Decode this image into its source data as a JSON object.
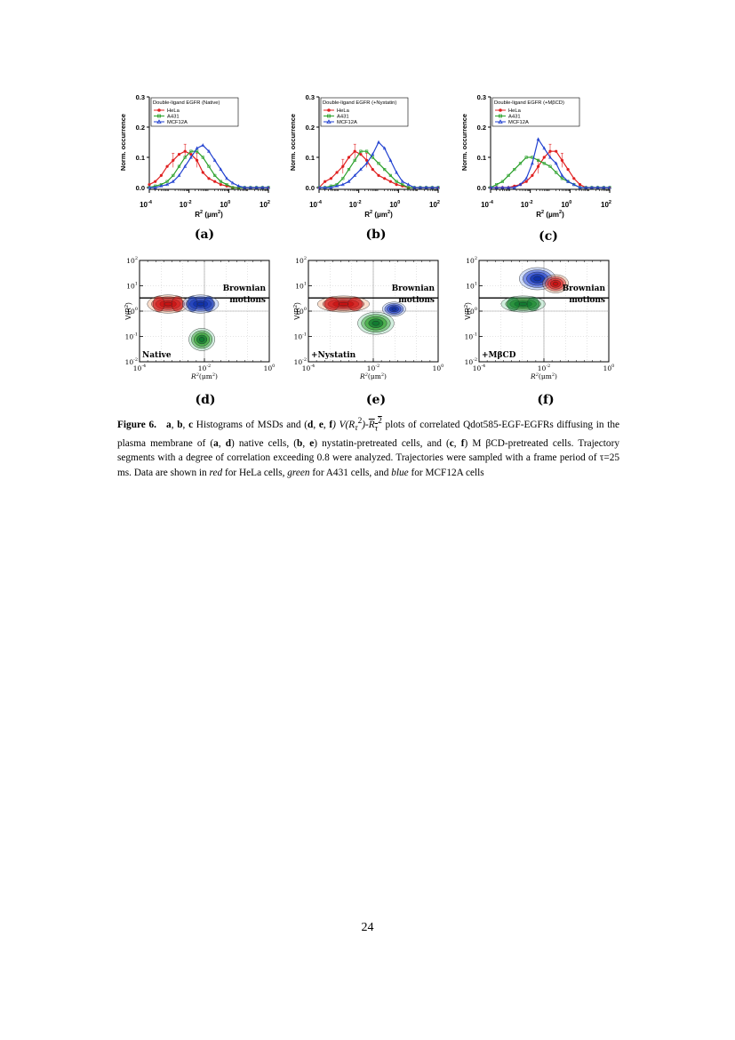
{
  "panels_top": [
    {
      "label": "(a)",
      "legend_title": "Double-ligand EGFR (Native)",
      "ylabel": "Norm. occurrence",
      "xlabel_main": "R",
      "xlabel_unit": " (μm )",
      "yticks": [
        "0.0",
        "0.1",
        "0.2",
        "0.3"
      ],
      "xticks": [
        {
          "base": "10",
          "exp": "-4"
        },
        {
          "base": "10",
          "exp": "-2"
        },
        {
          "base": "10",
          "exp": "0"
        },
        {
          "base": "10",
          "exp": "2"
        }
      ],
      "series_names": [
        "HeLa",
        "A431",
        "MCF12A"
      ]
    },
    {
      "label": "(b)",
      "legend_title": "Double-ligand EGFR (+Nystatin)",
      "ylabel": "Norm. occurrence",
      "xlabel_main": "R",
      "xlabel_unit": " (μm )",
      "yticks": [
        "0.0",
        "0.1",
        "0.2",
        "0.3"
      ],
      "xticks": [
        {
          "base": "10",
          "exp": "-4"
        },
        {
          "base": "10",
          "exp": "-2"
        },
        {
          "base": "10",
          "exp": "0"
        },
        {
          "base": "10",
          "exp": "2"
        }
      ],
      "series_names": [
        "HeLa",
        "A431",
        "MCF12A"
      ]
    },
    {
      "label": "(c)",
      "legend_title": "Double-ligand EGFR (+MβCD)",
      "ylabel": "Norm. occurrence",
      "xlabel_main": "R",
      "xlabel_unit": " (μm )",
      "yticks": [
        "0.0",
        "0.1",
        "0.2",
        "0.3"
      ],
      "xticks": [
        {
          "base": "10",
          "exp": "-4"
        },
        {
          "base": "10",
          "exp": "-2"
        },
        {
          "base": "10",
          "exp": "0"
        },
        {
          "base": "10",
          "exp": "2"
        }
      ],
      "series_names": [
        "HeLa",
        "A431",
        "MCF12A"
      ]
    }
  ],
  "panels_bottom": [
    {
      "label": "(d)",
      "condition": "Native",
      "brownian_1": "Brownian",
      "brownian_2": "motions",
      "ylabel": "V(R )",
      "xlabel": "R (μ m )"
    },
    {
      "label": "(e)",
      "condition": "+Nystatin",
      "brownian_1": "Brownian",
      "brownian_2": "motions",
      "ylabel": "V(R )",
      "xlabel": "R (μ m )"
    },
    {
      "label": "(f)",
      "condition": "+MβCD",
      "brownian_1": "Brownian",
      "brownian_2": "motions",
      "ylabel": "V(R )",
      "xlabel": "R (μ m )"
    }
  ],
  "contour_yticks": [
    {
      "b": "10",
      "e": "2"
    },
    {
      "b": "10",
      "e": "1"
    },
    {
      "b": "10",
      "e": "0"
    },
    {
      "b": "10",
      "e": "-1"
    },
    {
      "b": "10",
      "e": "-2"
    }
  ],
  "contour_xticks": [
    {
      "b": "10",
      "e": "-4"
    },
    {
      "b": "10",
      "e": "-2"
    },
    {
      "b": "10",
      "e": "0"
    }
  ],
  "caption": {
    "fig": "Figure 6.",
    "a": "a",
    "b": "b",
    "c": "c",
    "t1": "Histograms of MSDs and (",
    "d": "d",
    "e": "e",
    "f": "f",
    "t2": ") V(R",
    "t3": ")-",
    "t4": " plots of correlated Qdot585-EGF-EGFRs diffusing in the plasma membrane of (",
    "t5": ") native cells, (",
    "t6": ") nystatin-pretreated cells, and (",
    "t7": ") M βCD-pretreated cells. Trajectory segments with a degree of correlation exceeding 0.8 were analyzed. Trajectories were sampled with a frame period of τ=25 ms. Data are shown in ",
    "red": "red",
    "t8": " for HeLa cells, ",
    "green": "green",
    "t9": " for A431 cells, and ",
    "blue": "blue",
    "t10": " for MCF12A cells"
  },
  "page_number": "24",
  "colors": {
    "hela": "#e02020",
    "a431": "#2aa02a",
    "mcf": "#2040d0"
  },
  "chart_data": [
    {
      "type": "line",
      "log_x": true,
      "xlim": [
        "1e-4",
        "1e2"
      ],
      "ylim": [
        0,
        0.3
      ],
      "x_log10": [
        -4,
        -3.7,
        -3.4,
        -3.1,
        -2.8,
        -2.5,
        -2.2,
        -1.9,
        -1.6,
        -1.3,
        -1,
        -0.7,
        -0.4,
        -0.1,
        0.2,
        0.5,
        0.8,
        1.1,
        1.4,
        1.7,
        2
      ],
      "series": [
        {
          "name": "HeLa",
          "values": [
            0.01,
            0.02,
            0.04,
            0.07,
            0.09,
            0.11,
            0.12,
            0.11,
            0.09,
            0.05,
            0.03,
            0.02,
            0.01,
            0.005,
            0,
            0,
            0,
            0,
            0,
            0,
            0
          ]
        },
        {
          "name": "A431",
          "values": [
            0,
            0.005,
            0.01,
            0.02,
            0.04,
            0.07,
            0.1,
            0.12,
            0.12,
            0.1,
            0.07,
            0.04,
            0.02,
            0.01,
            0,
            0,
            0,
            0,
            0,
            0,
            0
          ]
        },
        {
          "name": "MCF12A",
          "values": [
            0,
            0,
            0.005,
            0.01,
            0.02,
            0.04,
            0.07,
            0.1,
            0.13,
            0.14,
            0.12,
            0.09,
            0.06,
            0.03,
            0.015,
            0.005,
            0,
            0,
            0,
            0,
            0
          ]
        }
      ]
    },
    {
      "type": "line",
      "log_x": true,
      "xlim": [
        "1e-4",
        "1e2"
      ],
      "ylim": [
        0,
        0.3
      ],
      "x_log10": [
        -4,
        -3.7,
        -3.4,
        -3.1,
        -2.8,
        -2.5,
        -2.2,
        -1.9,
        -1.6,
        -1.3,
        -1,
        -0.7,
        -0.4,
        -0.1,
        0.2,
        0.5,
        0.8,
        1.1,
        1.4,
        1.7,
        2
      ],
      "series": [
        {
          "name": "HeLa",
          "values": [
            0,
            0.02,
            0.03,
            0.05,
            0.07,
            0.1,
            0.12,
            0.11,
            0.09,
            0.06,
            0.04,
            0.03,
            0.02,
            0.01,
            0.005,
            0,
            0,
            0,
            0,
            0,
            0
          ]
        },
        {
          "name": "A431",
          "values": [
            0,
            0,
            0.005,
            0.01,
            0.03,
            0.06,
            0.09,
            0.12,
            0.12,
            0.1,
            0.08,
            0.06,
            0.04,
            0.02,
            0.01,
            0,
            0,
            0,
            0,
            0,
            0
          ]
        },
        {
          "name": "MCF12A",
          "values": [
            0,
            0,
            0,
            0.005,
            0.01,
            0.02,
            0.04,
            0.06,
            0.08,
            0.11,
            0.15,
            0.13,
            0.09,
            0.05,
            0.02,
            0.01,
            0,
            0,
            0,
            0,
            0
          ]
        }
      ]
    },
    {
      "type": "line",
      "log_x": true,
      "xlim": [
        "1e-4",
        "1e2"
      ],
      "ylim": [
        0,
        0.3
      ],
      "x_log10": [
        -4,
        -3.7,
        -3.4,
        -3.1,
        -2.8,
        -2.5,
        -2.2,
        -1.9,
        -1.6,
        -1.3,
        -1,
        -0.7,
        -0.4,
        -0.1,
        0.2,
        0.5,
        0.8,
        1.1,
        1.4,
        1.7,
        2
      ],
      "series": [
        {
          "name": "HeLa",
          "values": [
            0,
            0,
            0,
            0,
            0.005,
            0.01,
            0.02,
            0.04,
            0.07,
            0.1,
            0.12,
            0.12,
            0.09,
            0.06,
            0.03,
            0.01,
            0,
            0,
            0,
            0,
            0
          ]
        },
        {
          "name": "A431",
          "values": [
            0,
            0.01,
            0.02,
            0.04,
            0.06,
            0.08,
            0.1,
            0.1,
            0.09,
            0.08,
            0.07,
            0.05,
            0.03,
            0.02,
            0.01,
            0,
            0,
            0,
            0,
            0,
            0
          ]
        },
        {
          "name": "MCF12A",
          "values": [
            0,
            0,
            0,
            0,
            0,
            0.01,
            0.03,
            0.08,
            0.16,
            0.13,
            0.1,
            0.08,
            0.04,
            0.02,
            0.01,
            0,
            0,
            0,
            0,
            0,
            0
          ]
        }
      ]
    }
  ]
}
